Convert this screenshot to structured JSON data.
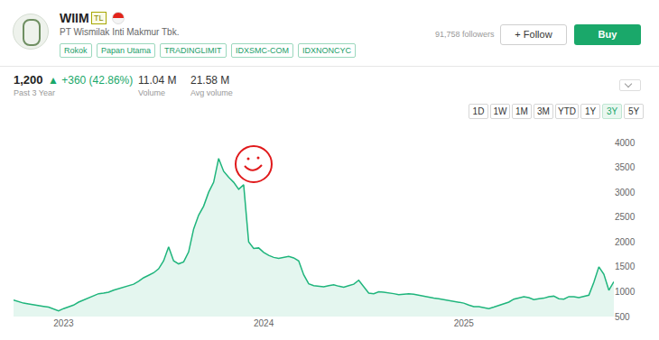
{
  "header": {
    "ticker": "WIIM",
    "badge": "TL",
    "company": "PT Wismilak Inti Makmur Tbk.",
    "tags": [
      "Rokok",
      "Papan Utama",
      "TRADINGLIMIT",
      "IDXSMC-COM",
      "IDXNONCYC"
    ],
    "followers": "91,758 followers",
    "follow_button": "+ Follow",
    "buy_button": "Buy"
  },
  "summary": {
    "price": "1,200",
    "change": "▲ +360 (42.86%)",
    "period": "Past 3 Year",
    "stats": [
      {
        "value": "11.04 M",
        "label": "Volume"
      },
      {
        "value": "21.58 M",
        "label": "Avg volume"
      }
    ]
  },
  "range_buttons": {
    "options": [
      "1D",
      "1W",
      "1M",
      "3M",
      "YTD",
      "1Y",
      "3Y",
      "5Y"
    ],
    "active": "3Y"
  },
  "chart_data": {
    "type": "area",
    "categories": [
      null,
      null,
      null,
      null,
      null,
      null,
      null,
      null,
      null,
      null,
      "2023",
      null,
      null,
      null,
      null,
      null,
      null,
      null,
      null,
      null,
      null,
      null,
      null,
      null,
      null,
      null,
      null,
      null,
      null,
      null,
      null,
      null,
      null,
      null,
      null,
      null,
      null,
      null,
      null,
      null,
      null,
      null,
      null,
      null,
      null,
      null,
      null,
      null,
      null,
      null,
      "2024",
      null,
      null,
      null,
      null,
      null,
      null,
      null,
      null,
      null,
      null,
      null,
      null,
      null,
      null,
      null,
      null,
      null,
      null,
      null,
      null,
      null,
      null,
      null,
      null,
      null,
      null,
      null,
      null,
      null,
      null,
      null,
      null,
      null,
      null,
      null,
      null,
      null,
      null,
      null,
      "2025",
      null,
      null,
      null,
      null,
      null,
      null,
      null,
      null,
      null,
      null,
      null,
      null,
      null,
      null,
      null,
      null,
      null,
      null,
      null,
      null,
      null,
      null,
      null,
      null,
      null,
      null,
      null,
      null,
      null,
      null
    ],
    "values": [
      830,
      800,
      770,
      755,
      735,
      715,
      705,
      690,
      650,
      615,
      660,
      690,
      730,
      790,
      830,
      870,
      920,
      960,
      970,
      990,
      1030,
      1060,
      1090,
      1120,
      1150,
      1210,
      1280,
      1330,
      1380,
      1460,
      1620,
      1900,
      1620,
      1560,
      1600,
      1800,
      2260,
      2540,
      2720,
      3000,
      3200,
      3680,
      3420,
      3300,
      3200,
      3060,
      3150,
      2000,
      1870,
      1880,
      1790,
      1730,
      1690,
      1670,
      1690,
      1710,
      1680,
      1620,
      1340,
      1160,
      1120,
      1110,
      1100,
      1120,
      1140,
      1110,
      1090,
      1120,
      1150,
      1230,
      1100,
      970,
      960,
      1000,
      990,
      980,
      960,
      940,
      950,
      960,
      950,
      930,
      900,
      880,
      870,
      860,
      840,
      820,
      800,
      780,
      770,
      730,
      700,
      700,
      680,
      660,
      690,
      720,
      750,
      790,
      850,
      880,
      900,
      880,
      840,
      860,
      870,
      900,
      910,
      860,
      850,
      900,
      900,
      880,
      900,
      930,
      1190,
      1500,
      1350,
      1030,
      1200
    ],
    "color": "#1fb57c",
    "ylim": [
      500,
      4000
    ],
    "yticks": [
      500,
      1000,
      1500,
      2000,
      2500,
      3000,
      3500,
      4000
    ],
    "grid": false
  }
}
